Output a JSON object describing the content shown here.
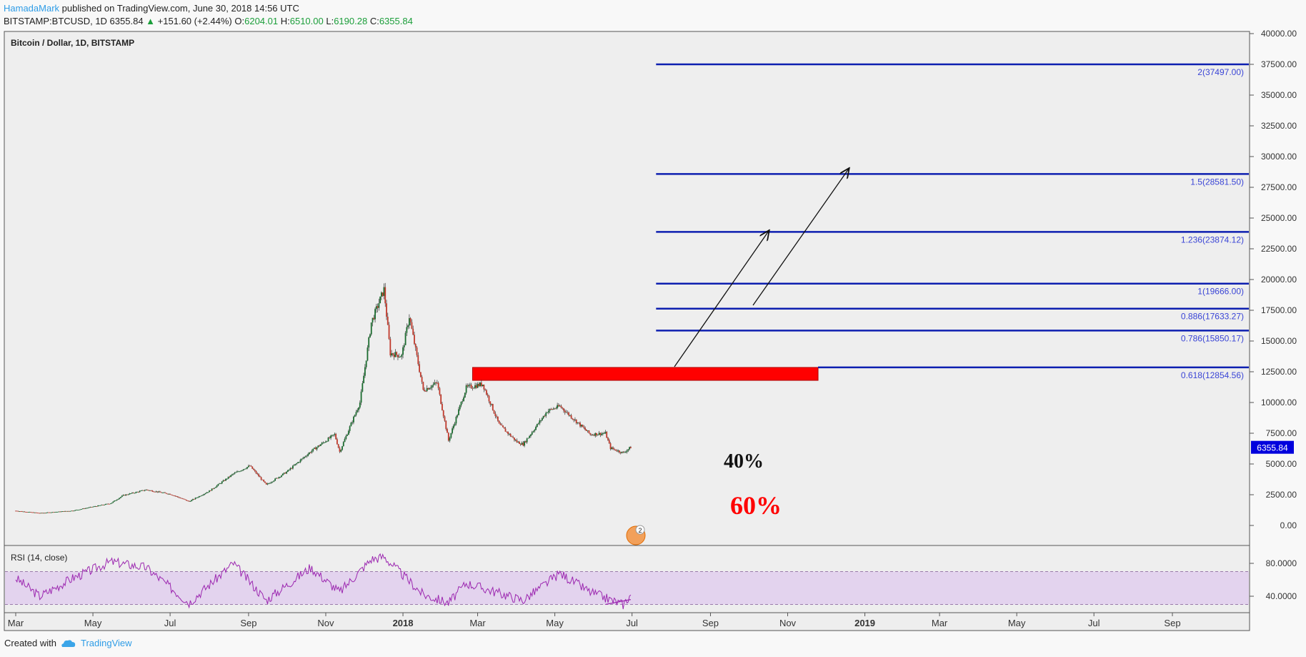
{
  "header": {
    "author": "HamadaMark",
    "published": "published on TradingView.com, June 30, 2018 14:56 UTC",
    "symbol_line": "BITSTAMP:BTCUSD, 1D  6355.84",
    "change": "+151.60 (+2.44%)",
    "o_label": "O:",
    "o_value": "6204.01",
    "h_label": "H:",
    "h_value": "6510.00",
    "l_label": "L:",
    "l_value": "6190.28",
    "c_label": "C:",
    "c_value": "6355.84"
  },
  "chart_title": "Bitcoin / Dollar, 1D, BITSTAMP",
  "rsi_label": "RSI (14, close)",
  "footer": {
    "created_with": "Created with",
    "brand": "TradingView"
  },
  "colors": {
    "fib": "#0d1fb0",
    "up": "#1a6b2e",
    "down": "#c0392b",
    "zone": "#ff0000",
    "rsi": "#9c27b0",
    "rsi_band": "#e3d3ee",
    "price_badge": "#0000dd"
  },
  "chart_data": [
    {
      "type": "candlestick",
      "title": "Bitcoin / Dollar, 1D, BITSTAMP",
      "ylim": [
        -1000,
        40000
      ],
      "y_ticks": [
        "40000.00",
        "37500.00",
        "35000.00",
        "32500.00",
        "30000.00",
        "27500.00",
        "25000.00",
        "22500.00",
        "20000.00",
        "17500.00",
        "15000.00",
        "12500.00",
        "10000.00",
        "7500.00",
        "5000.00",
        "2500.00",
        "0.00"
      ],
      "x_ticks": [
        "Mar",
        "May",
        "Jul",
        "Sep",
        "Nov",
        "2018",
        "Mar",
        "May",
        "Jul",
        "Sep",
        "Nov",
        "2019",
        "Mar",
        "May",
        "Jul",
        "Sep"
      ],
      "last_price": "6355.84",
      "price_path": [
        [
          "2017-03-01",
          1190
        ],
        [
          "2017-03-20",
          1000
        ],
        [
          "2017-04-15",
          1200
        ],
        [
          "2017-05-15",
          1800
        ],
        [
          "2017-05-25",
          2450
        ],
        [
          "2017-06-12",
          2900
        ],
        [
          "2017-07-01",
          2550
        ],
        [
          "2017-07-16",
          1950
        ],
        [
          "2017-08-01",
          2800
        ],
        [
          "2017-08-20",
          4200
        ],
        [
          "2017-09-02",
          4850
        ],
        [
          "2017-09-15",
          3300
        ],
        [
          "2017-10-01",
          4350
        ],
        [
          "2017-10-20",
          6000
        ],
        [
          "2017-11-08",
          7400
        ],
        [
          "2017-11-12",
          6000
        ],
        [
          "2017-11-28",
          10000
        ],
        [
          "2017-12-07",
          16500
        ],
        [
          "2017-12-17",
          19200
        ],
        [
          "2017-12-22",
          14000
        ],
        [
          "2017-12-31",
          13800
        ],
        [
          "2018-01-06",
          17000
        ],
        [
          "2018-01-17",
          11000
        ],
        [
          "2018-01-28",
          11600
        ],
        [
          "2018-02-06",
          6900
        ],
        [
          "2018-02-20",
          11200
        ],
        [
          "2018-03-05",
          11500
        ],
        [
          "2018-03-18",
          8200
        ],
        [
          "2018-04-01",
          6800
        ],
        [
          "2018-04-06",
          6600
        ],
        [
          "2018-04-25",
          9300
        ],
        [
          "2018-05-05",
          9700
        ],
        [
          "2018-05-29",
          7400
        ],
        [
          "2018-06-10",
          7500
        ],
        [
          "2018-06-14",
          6300
        ],
        [
          "2018-06-24",
          5900
        ],
        [
          "2018-06-30",
          6355
        ]
      ],
      "fib_levels": [
        {
          "ratio": "0.618",
          "value": 12854.56,
          "label": "0.618(12854.56)"
        },
        {
          "ratio": "0.786",
          "value": 15850.17,
          "label": "0.786(15850.17)"
        },
        {
          "ratio": "0.886",
          "value": 17633.27,
          "label": "0.886(17633.27)"
        },
        {
          "ratio": "1",
          "value": 19666.0,
          "label": "1(19666.00)"
        },
        {
          "ratio": "1.236",
          "value": 23874.12,
          "label": "1.236(23874.12)"
        },
        {
          "ratio": "1.5",
          "value": 28581.5,
          "label": "1.5(28581.50)"
        },
        {
          "ratio": "2",
          "value": 37497.0,
          "label": "2(37497.00)"
        }
      ],
      "resistance_zone": {
        "from_date": "2018-02-25",
        "to_date": "2018-11-25",
        "low": 11800,
        "high": 12850
      },
      "annotations": [
        {
          "text": "40%",
          "color": "#111111"
        },
        {
          "text": "60%",
          "color": "#ff0000"
        }
      ],
      "event_badge": "2"
    },
    {
      "type": "line",
      "title": "RSI (14, close)",
      "ylim": [
        25,
        92
      ],
      "y_ticks": [
        "80.0000",
        "40.0000"
      ],
      "band": [
        30,
        70
      ],
      "rsi_path": [
        [
          "2017-03-01",
          62
        ],
        [
          "2017-03-20",
          40
        ],
        [
          "2017-04-15",
          62
        ],
        [
          "2017-05-15",
          82
        ],
        [
          "2017-06-12",
          75
        ],
        [
          "2017-07-16",
          32
        ],
        [
          "2017-08-20",
          80
        ],
        [
          "2017-09-15",
          35
        ],
        [
          "2017-10-20",
          75
        ],
        [
          "2017-11-12",
          45
        ],
        [
          "2017-12-07",
          85
        ],
        [
          "2017-12-17",
          88
        ],
        [
          "2018-01-17",
          42
        ],
        [
          "2018-02-06",
          32
        ],
        [
          "2018-02-20",
          56
        ],
        [
          "2018-04-06",
          35
        ],
        [
          "2018-05-05",
          68
        ],
        [
          "2018-05-29",
          45
        ],
        [
          "2018-06-24",
          30
        ],
        [
          "2018-06-30",
          42
        ]
      ]
    }
  ]
}
